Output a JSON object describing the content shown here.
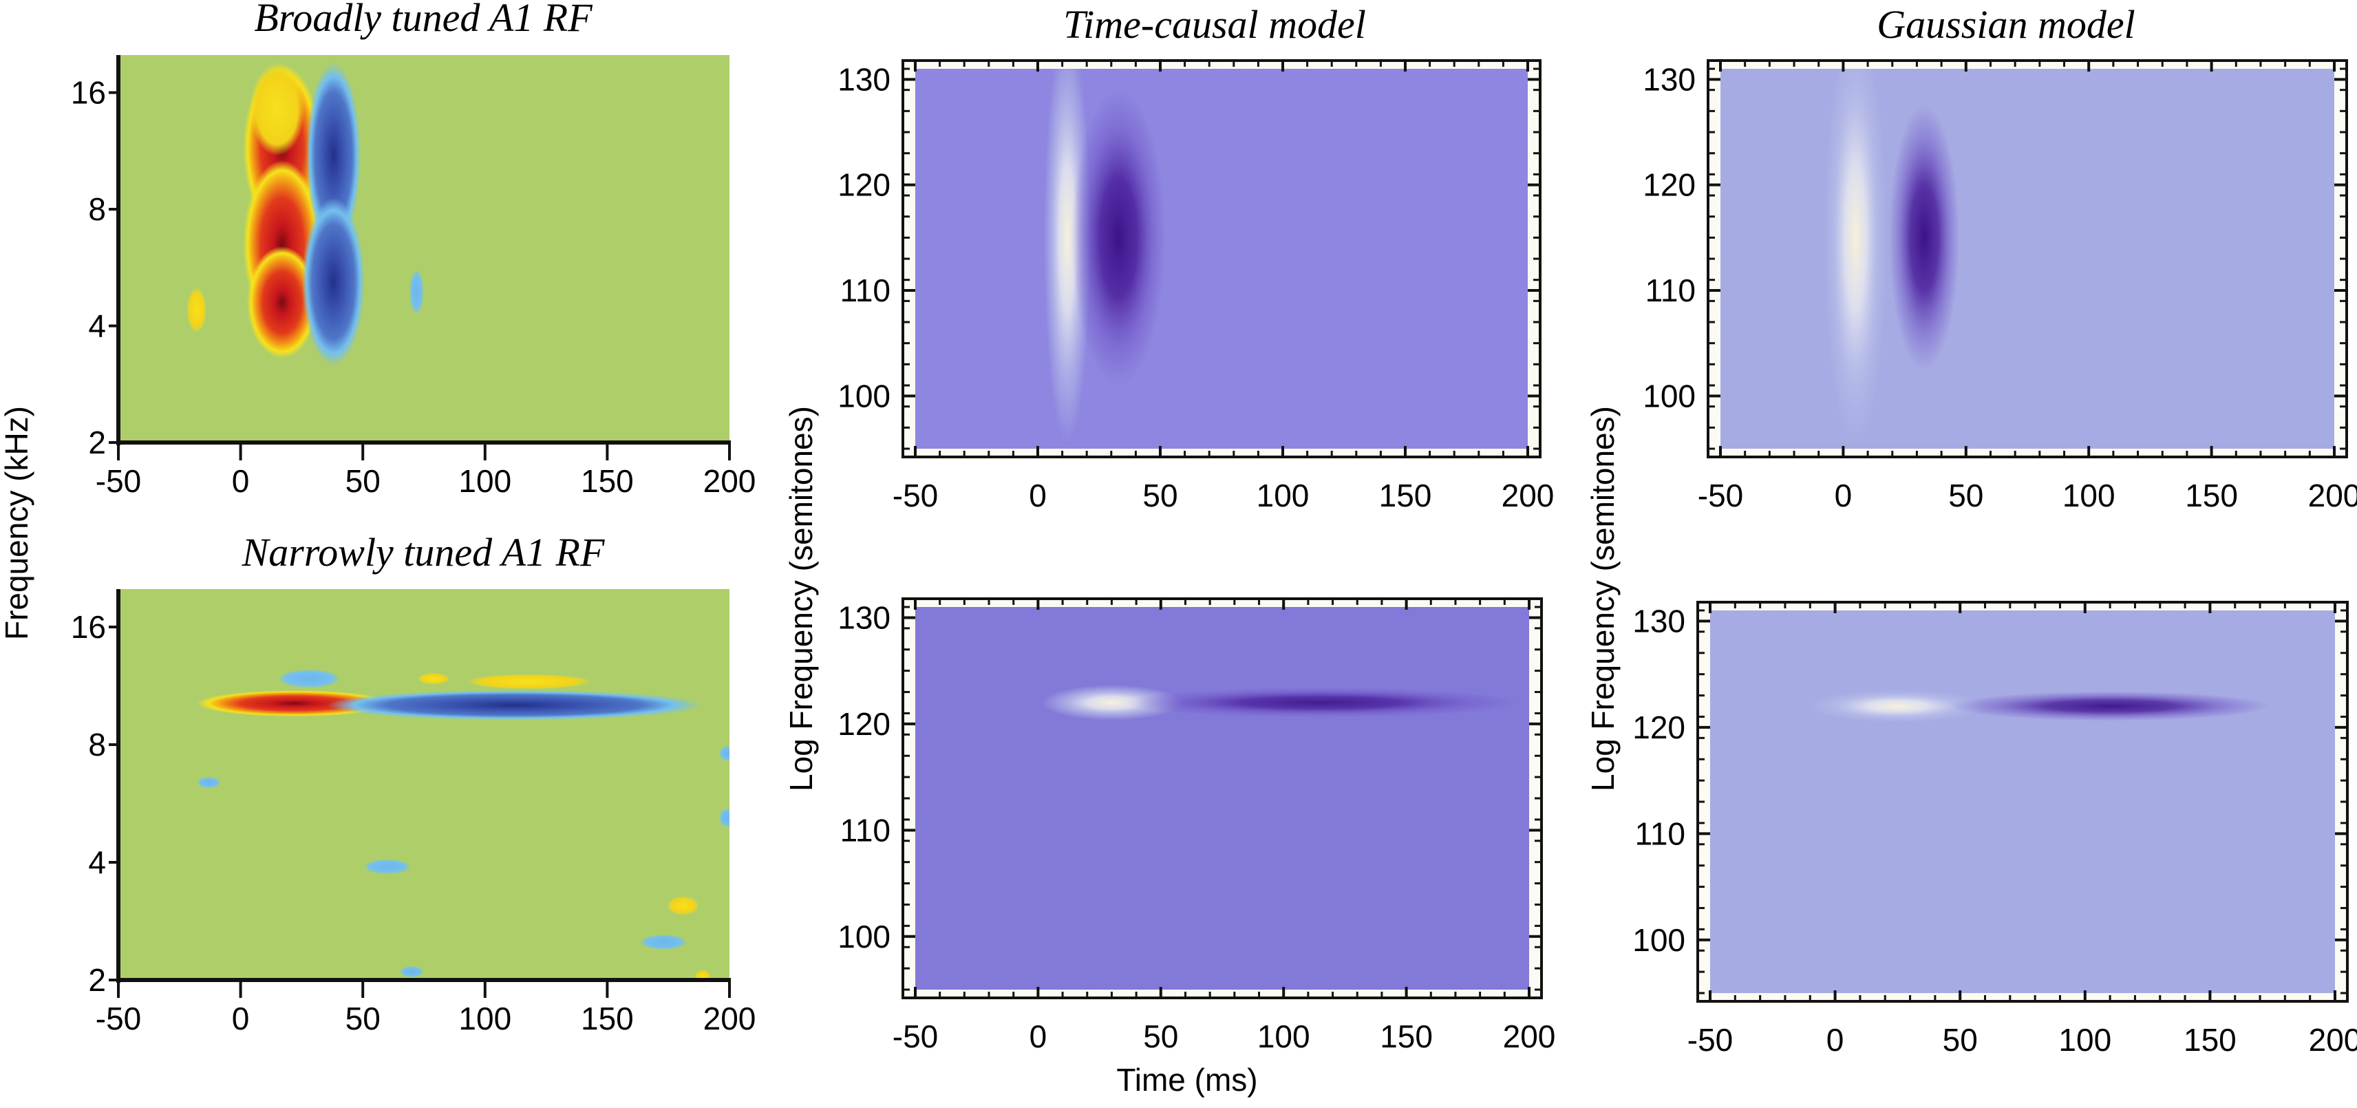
{
  "figure": {
    "ylabel_left": "Frequency (kHz)",
    "ylabel_middle": "Log Frequency (semitones)",
    "ylabel_right": "Log Frequency (semitones)",
    "xlabel_middle": "Time (ms)"
  },
  "chart_data": [
    {
      "id": "broad-a1",
      "type": "heatmap",
      "title": "Broadly tuned A1 RF",
      "xlabel": "",
      "ylabel": "Frequency (kHz)",
      "xlim": [
        -50,
        200
      ],
      "ylim": [
        2,
        20
      ],
      "yscale": "log2",
      "xticks": [
        -50,
        0,
        50,
        100,
        150,
        200
      ],
      "yticks": [
        2,
        4,
        8,
        16
      ],
      "background": "#AECE6A",
      "colormap": "jet",
      "features": [
        {
          "polarity": "excitatory",
          "t": 17,
          "f": 11.5,
          "dt": 10,
          "df_oct": 0.45,
          "strength": 1.0
        },
        {
          "polarity": "excitatory",
          "t": 17,
          "f": 6.5,
          "dt": 10,
          "df_oct": 0.45,
          "strength": 1.0
        },
        {
          "polarity": "excitatory",
          "t": 17,
          "f": 4.6,
          "dt": 9,
          "df_oct": 0.3,
          "strength": 0.9
        },
        {
          "polarity": "excitatory",
          "t": 15,
          "f": 14.5,
          "dt": 7,
          "df_oct": 0.25,
          "strength": 0.4
        },
        {
          "polarity": "inhibitory",
          "t": 38,
          "f": 11,
          "dt": 7,
          "df_oct": 0.5,
          "strength": 0.85
        },
        {
          "polarity": "inhibitory",
          "t": 38,
          "f": 5.2,
          "dt": 8,
          "df_oct": 0.45,
          "strength": 0.9
        },
        {
          "polarity": "excitatory",
          "t": -18,
          "f": 4.4,
          "dt": 2.5,
          "df_oct": 0.12,
          "strength": 0.3
        },
        {
          "polarity": "inhibitory",
          "t": 72,
          "f": 4.9,
          "dt": 1.8,
          "df_oct": 0.12,
          "strength": 0.3
        }
      ]
    },
    {
      "id": "narrow-a1",
      "type": "heatmap",
      "title": "Narrowly tuned A1 RF",
      "xlabel": "",
      "ylabel": "Frequency (kHz)",
      "xlim": [
        -50,
        200
      ],
      "ylim": [
        2,
        20
      ],
      "yscale": "log2",
      "xticks": [
        -50,
        0,
        50,
        100,
        150,
        200
      ],
      "yticks": [
        2,
        4,
        8,
        16
      ],
      "background": "#AECE6A",
      "colormap": "jet",
      "features": [
        {
          "polarity": "excitatory",
          "t": 22,
          "f": 10.2,
          "dt": 25,
          "df_oct": 0.07,
          "strength": 1.0
        },
        {
          "polarity": "inhibitory",
          "t": 112,
          "f": 10.1,
          "dt": 48,
          "df_oct": 0.08,
          "strength": 0.95
        },
        {
          "polarity": "inhibitory",
          "t": 28,
          "f": 11.8,
          "dt": 8,
          "df_oct": 0.05,
          "strength": 0.3
        },
        {
          "polarity": "excitatory",
          "t": 79,
          "f": 11.8,
          "dt": 4,
          "df_oct": 0.03,
          "strength": 0.35
        },
        {
          "polarity": "excitatory",
          "t": 118,
          "f": 11.6,
          "dt": 16,
          "df_oct": 0.04,
          "strength": 0.35
        },
        {
          "polarity": "inhibitory",
          "t": -13,
          "f": 6.4,
          "dt": 3,
          "df_oct": 0.03,
          "strength": 0.25
        },
        {
          "polarity": "inhibitory",
          "t": 60,
          "f": 3.9,
          "dt": 6,
          "df_oct": 0.04,
          "strength": 0.3
        },
        {
          "polarity": "excitatory",
          "t": 181,
          "f": 3.1,
          "dt": 4,
          "df_oct": 0.05,
          "strength": 0.35
        },
        {
          "polarity": "inhibitory",
          "t": 173,
          "f": 2.5,
          "dt": 6,
          "df_oct": 0.04,
          "strength": 0.3
        },
        {
          "polarity": "inhibitory",
          "t": 70,
          "f": 2.1,
          "dt": 3,
          "df_oct": 0.03,
          "strength": 0.2
        },
        {
          "polarity": "excitatory",
          "t": 189,
          "f": 2.05,
          "dt": 2,
          "df_oct": 0.03,
          "strength": 0.3
        },
        {
          "polarity": "inhibitory",
          "t": 199,
          "f": 7.6,
          "dt": 2,
          "df_oct": 0.04,
          "strength": 0.25
        },
        {
          "polarity": "inhibitory",
          "t": 199,
          "f": 5.2,
          "dt": 2,
          "df_oct": 0.05,
          "strength": 0.25
        }
      ]
    },
    {
      "id": "time-causal-broad",
      "type": "heatmap",
      "title": "Time-causal model",
      "xlabel": "",
      "ylabel": "Log Frequency (semitones)",
      "xlim": [
        -50,
        200
      ],
      "ylim": [
        95,
        131
      ],
      "xticks": [
        -50,
        0,
        50,
        100,
        150,
        200
      ],
      "yticks": [
        100,
        110,
        120,
        130
      ],
      "background": "#8E86E0",
      "colormap": "blue-purple-white",
      "features": [
        {
          "polarity": "excitatory",
          "t": 12,
          "f": 115,
          "dt": 6,
          "df": 14,
          "strength": 1.0
        },
        {
          "polarity": "inhibitory",
          "t": 33,
          "f": 115,
          "dt": 12,
          "df": 10,
          "strength": 1.0
        }
      ]
    },
    {
      "id": "time-causal-narrow",
      "type": "heatmap",
      "title": "",
      "xlabel": "Time (ms)",
      "ylabel": "Log Frequency (semitones)",
      "xlim": [
        -50,
        200
      ],
      "ylim": [
        95,
        131
      ],
      "xticks": [
        -50,
        0,
        50,
        100,
        150,
        200
      ],
      "yticks": [
        100,
        110,
        120,
        130
      ],
      "background": "#8279D8",
      "colormap": "blue-purple-white",
      "features": [
        {
          "polarity": "excitatory",
          "t": 30,
          "f": 122,
          "dt": 18,
          "df": 1.2,
          "strength": 1.0
        },
        {
          "polarity": "inhibitory",
          "t": 115,
          "f": 122,
          "dt": 50,
          "df": 1.0,
          "strength": 0.9
        }
      ]
    },
    {
      "id": "gaussian-broad",
      "type": "heatmap",
      "title": "Gaussian model",
      "xlabel": "",
      "ylabel": "Log Frequency (semitones)",
      "xlim": [
        -50,
        200
      ],
      "ylim": [
        95,
        131
      ],
      "xticks": [
        -50,
        0,
        50,
        100,
        150,
        200
      ],
      "yticks": [
        100,
        110,
        120,
        130
      ],
      "background": "#A7ABE3",
      "colormap": "blue-purple-white",
      "features": [
        {
          "polarity": "excitatory",
          "t": 5,
          "f": 115,
          "dt": 8,
          "df": 14,
          "strength": 1.0
        },
        {
          "polarity": "inhibitory",
          "t": 33,
          "f": 115,
          "dt": 9,
          "df": 9,
          "strength": 1.0
        }
      ]
    },
    {
      "id": "gaussian-narrow",
      "type": "heatmap",
      "title": "",
      "xlabel": "",
      "ylabel": "Log Frequency (semitones)",
      "xlim": [
        -50,
        200
      ],
      "ylim": [
        95,
        131
      ],
      "xticks": [
        -50,
        0,
        50,
        100,
        150,
        200
      ],
      "yticks": [
        100,
        110,
        120,
        130
      ],
      "background": "#A7ABE3",
      "colormap": "blue-purple-white",
      "features": [
        {
          "polarity": "excitatory",
          "t": 25,
          "f": 122,
          "dt": 22,
          "df": 1.1,
          "strength": 1.0
        },
        {
          "polarity": "inhibitory",
          "t": 110,
          "f": 122,
          "dt": 40,
          "df": 1.0,
          "strength": 0.95
        }
      ]
    }
  ]
}
